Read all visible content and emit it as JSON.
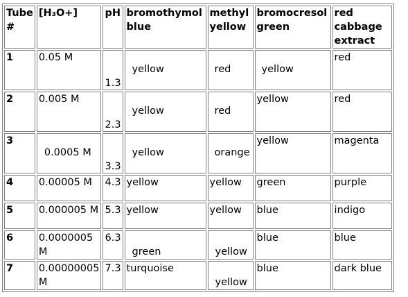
{
  "headers": {
    "tube": "Tube #",
    "conc": "[H₃O+]",
    "ph": "pH",
    "bromothymol": "bromothymol blue",
    "methyl": "methyl yellow",
    "bromocresol": "bromocresol green",
    "cabbage": "red cabbage extract"
  },
  "rows": [
    {
      "tube": "1",
      "conc": "0.05 M",
      "ph": "1.3",
      "bromothymol": "yellow",
      "methyl": "red",
      "bromocresol": "yellow",
      "cabbage": "red"
    },
    {
      "tube": "2",
      "conc": "0.005 M",
      "ph": "2.3",
      "bromothymol": "yellow",
      "methyl": "red",
      "bromocresol": "yellow",
      "cabbage": "red"
    },
    {
      "tube": "3",
      "conc": "0.0005 M",
      "ph": "3.3",
      "bromothymol": "yellow",
      "methyl": "orange",
      "bromocresol": "yellow",
      "cabbage": "magenta"
    },
    {
      "tube": "4",
      "conc": "0.00005 M",
      "ph": "4.3",
      "bromothymol": "yellow",
      "methyl": "yellow",
      "bromocresol": "green",
      "cabbage": "purple"
    },
    {
      "tube": "5",
      "conc": "0.000005 M",
      "ph": "5.3",
      "bromothymol": "yellow",
      "methyl": "yellow",
      "bromocresol": "blue",
      "cabbage": "indigo"
    },
    {
      "tube": "6",
      "conc": "0.0000005 M",
      "ph": "6.3",
      "bromothymol": "green",
      "methyl": "yellow",
      "bromocresol": "blue",
      "cabbage": "blue"
    },
    {
      "tube": "7",
      "conc": "0.00000005 M",
      "ph": "7.3",
      "bromothymol": "turquoise",
      "methyl": "yellow",
      "bromocresol": "blue",
      "cabbage": "dark blue"
    }
  ]
}
